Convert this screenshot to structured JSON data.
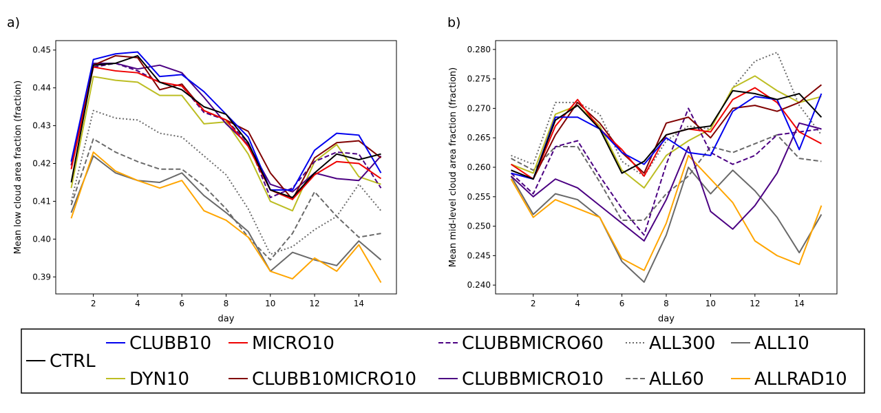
{
  "chart_data": [
    {
      "panel": "a)",
      "type": "line",
      "xlabel": "day",
      "ylabel": "Mean low cloud area fraction (fraction)",
      "xlim": [
        0.3,
        15.7
      ],
      "ylim": [
        0.3855,
        0.4525
      ],
      "xticks": [
        2,
        4,
        6,
        8,
        10,
        12,
        14
      ],
      "yticks": [
        0.39,
        0.4,
        0.41,
        0.42,
        0.43,
        0.44,
        0.45
      ],
      "ytick_labels": [
        "0.39",
        "0.40",
        "0.41",
        "0.42",
        "0.43",
        "0.44",
        "0.45"
      ],
      "grid": false,
      "x": [
        1,
        2,
        3,
        4,
        5,
        6,
        7,
        8,
        9,
        10,
        11,
        12,
        13,
        14,
        15
      ],
      "series": [
        {
          "name": "ALL300",
          "values": [
            0.41,
            0.434,
            0.432,
            0.4315,
            0.428,
            0.427,
            0.422,
            0.417,
            0.408,
            0.396,
            0.398,
            0.4025,
            0.406,
            0.4145,
            0.4075
          ]
        },
        {
          "name": "ALL60",
          "values": [
            0.409,
            0.4265,
            0.423,
            0.4205,
            0.4185,
            0.4185,
            0.414,
            0.408,
            0.4005,
            0.3945,
            0.4015,
            0.4125,
            0.406,
            0.4005,
            0.4015
          ]
        },
        {
          "name": "ALL10",
          "values": [
            0.407,
            0.422,
            0.4175,
            0.4155,
            0.415,
            0.4175,
            0.4115,
            0.407,
            0.402,
            0.3915,
            0.3965,
            0.3945,
            0.393,
            0.3995,
            0.3945
          ]
        },
        {
          "name": "ALLRAD10",
          "values": [
            0.4055,
            0.423,
            0.418,
            0.4155,
            0.4135,
            0.4155,
            0.4075,
            0.405,
            0.4005,
            0.3915,
            0.3895,
            0.395,
            0.3915,
            0.3985,
            0.3885
          ]
        },
        {
          "name": "DYN10",
          "values": [
            0.4135,
            0.443,
            0.442,
            0.4415,
            0.438,
            0.438,
            0.4305,
            0.431,
            0.4225,
            0.41,
            0.4075,
            0.4205,
            0.425,
            0.4165,
            0.4145
          ]
        },
        {
          "name": "CLUBBMICRO60",
          "values": [
            0.4195,
            0.4455,
            0.4465,
            0.4445,
            0.4415,
            0.4405,
            0.4335,
            0.4315,
            0.4255,
            0.411,
            0.4135,
            0.4205,
            0.423,
            0.4225,
            0.4135
          ]
        },
        {
          "name": "CLUBBMICRO10",
          "values": [
            0.4195,
            0.4465,
            0.4465,
            0.445,
            0.446,
            0.444,
            0.4375,
            0.4305,
            0.425,
            0.4145,
            0.4125,
            0.4175,
            0.416,
            0.4155,
            0.422
          ]
        },
        {
          "name": "CLUBB10MICRO10",
          "values": [
            0.4205,
            0.446,
            0.4485,
            0.448,
            0.4395,
            0.441,
            0.434,
            0.4315,
            0.4285,
            0.4175,
            0.4105,
            0.4215,
            0.4255,
            0.426,
            0.4215
          ]
        },
        {
          "name": "MICRO10",
          "values": [
            0.4185,
            0.4455,
            0.4445,
            0.444,
            0.4415,
            0.4405,
            0.434,
            0.4315,
            0.4245,
            0.413,
            0.4105,
            0.417,
            0.4205,
            0.42,
            0.416
          ]
        },
        {
          "name": "CLUBB10",
          "values": [
            0.4205,
            0.4475,
            0.449,
            0.4495,
            0.443,
            0.4435,
            0.439,
            0.433,
            0.427,
            0.413,
            0.413,
            0.4235,
            0.428,
            0.4275,
            0.4175
          ]
        },
        {
          "name": "CTRL",
          "values": [
            0.415,
            0.446,
            0.4465,
            0.4485,
            0.4415,
            0.4395,
            0.435,
            0.433,
            0.4255,
            0.413,
            0.411,
            0.4175,
            0.4225,
            0.421,
            0.4225
          ]
        }
      ]
    },
    {
      "panel": "b)",
      "type": "line",
      "xlabel": "day",
      "ylabel": "Mean mid-level cloud area fraction (fraction)",
      "xlim": [
        0.3,
        15.7
      ],
      "ylim": [
        0.2385,
        0.2815
      ],
      "xticks": [
        2,
        4,
        6,
        8,
        10,
        12,
        14
      ],
      "yticks": [
        0.24,
        0.245,
        0.25,
        0.255,
        0.26,
        0.265,
        0.27,
        0.275,
        0.28
      ],
      "ytick_labels": [
        "0.240",
        "0.245",
        "0.250",
        "0.255",
        "0.260",
        "0.265",
        "0.270",
        "0.275",
        "0.280"
      ],
      "grid": false,
      "x": [
        1,
        2,
        3,
        4,
        5,
        6,
        7,
        8,
        9,
        10,
        11,
        12,
        13,
        14,
        15
      ],
      "series": [
        {
          "name": "ALL300",
          "values": [
            0.262,
            0.2605,
            0.271,
            0.271,
            0.269,
            0.261,
            0.2585,
            0.2645,
            0.267,
            0.2665,
            0.2735,
            0.278,
            0.2795,
            0.2705,
            0.2655
          ]
        },
        {
          "name": "ALL60",
          "values": [
            0.2615,
            0.2595,
            0.2635,
            0.2635,
            0.2575,
            0.251,
            0.251,
            0.2555,
            0.2585,
            0.2635,
            0.2625,
            0.264,
            0.2655,
            0.2615,
            0.261
          ]
        },
        {
          "name": "ALL10",
          "values": [
            0.2585,
            0.252,
            0.2555,
            0.2545,
            0.2515,
            0.244,
            0.2405,
            0.2485,
            0.26,
            0.2555,
            0.2595,
            0.256,
            0.2515,
            0.2455,
            0.252
          ]
        },
        {
          "name": "ALLRAD10",
          "values": [
            0.258,
            0.2515,
            0.2545,
            0.253,
            0.2515,
            0.2445,
            0.2425,
            0.2505,
            0.262,
            0.258,
            0.254,
            0.2475,
            0.245,
            0.2435,
            0.2535
          ]
        },
        {
          "name": "DYN10",
          "values": [
            0.2605,
            0.259,
            0.269,
            0.2705,
            0.267,
            0.2595,
            0.2565,
            0.262,
            0.2645,
            0.2665,
            0.2735,
            0.2755,
            0.273,
            0.271,
            0.272
          ]
        },
        {
          "name": "CLUBBMICRO60",
          "values": [
            0.259,
            0.2555,
            0.2635,
            0.2645,
            0.2585,
            0.253,
            0.2485,
            0.2605,
            0.27,
            0.2625,
            0.2605,
            0.262,
            0.2655,
            0.266,
            0.2665
          ]
        },
        {
          "name": "CLUBBMICRO10",
          "values": [
            0.2585,
            0.255,
            0.258,
            0.2565,
            0.2535,
            0.2505,
            0.2475,
            0.2545,
            0.2635,
            0.2525,
            0.2495,
            0.2535,
            0.259,
            0.2675,
            0.2665
          ]
        },
        {
          "name": "CLUBB10MICRO10",
          "values": [
            0.2595,
            0.258,
            0.2655,
            0.271,
            0.2675,
            0.2625,
            0.259,
            0.2675,
            0.2685,
            0.265,
            0.27,
            0.2705,
            0.2695,
            0.271,
            0.274
          ]
        },
        {
          "name": "MICRO10",
          "values": [
            0.2605,
            0.258,
            0.267,
            0.2715,
            0.2665,
            0.263,
            0.2585,
            0.2655,
            0.2665,
            0.266,
            0.2715,
            0.2735,
            0.271,
            0.266,
            0.264
          ]
        },
        {
          "name": "CLUBB10",
          "values": [
            0.259,
            0.258,
            0.2685,
            0.2685,
            0.2665,
            0.2625,
            0.2605,
            0.265,
            0.2625,
            0.262,
            0.2695,
            0.272,
            0.2715,
            0.263,
            0.2725
          ]
        },
        {
          "name": "CTRL",
          "values": [
            0.2595,
            0.258,
            0.268,
            0.2705,
            0.2665,
            0.259,
            0.261,
            0.2655,
            0.2665,
            0.267,
            0.273,
            0.2725,
            0.2715,
            0.2725,
            0.2685
          ]
        }
      ]
    }
  ],
  "legend": {
    "placement": "bottom",
    "entries": [
      {
        "name": "CTRL",
        "color": "#000000",
        "dash": "solid"
      },
      {
        "name": "CLUBB10",
        "color": "#0000ee",
        "dash": "solid"
      },
      {
        "name": "DYN10",
        "color": "#bcbd22",
        "dash": "solid"
      },
      {
        "name": "MICRO10",
        "color": "#ee0000",
        "dash": "solid"
      },
      {
        "name": "CLUBB10MICRO10",
        "color": "#800000",
        "dash": "solid"
      },
      {
        "name": "CLUBBMICRO60",
        "color": "#4b0082",
        "dash": "dashed"
      },
      {
        "name": "CLUBBMICRO10",
        "color": "#4b0082",
        "dash": "solid"
      },
      {
        "name": "ALL300",
        "color": "#696969",
        "dash": "dotted"
      },
      {
        "name": "ALL60",
        "color": "#696969",
        "dash": "dashed"
      },
      {
        "name": "ALL10",
        "color": "#696969",
        "dash": "solid"
      },
      {
        "name": "ALLRAD10",
        "color": "#ffa500",
        "dash": "solid"
      }
    ]
  }
}
